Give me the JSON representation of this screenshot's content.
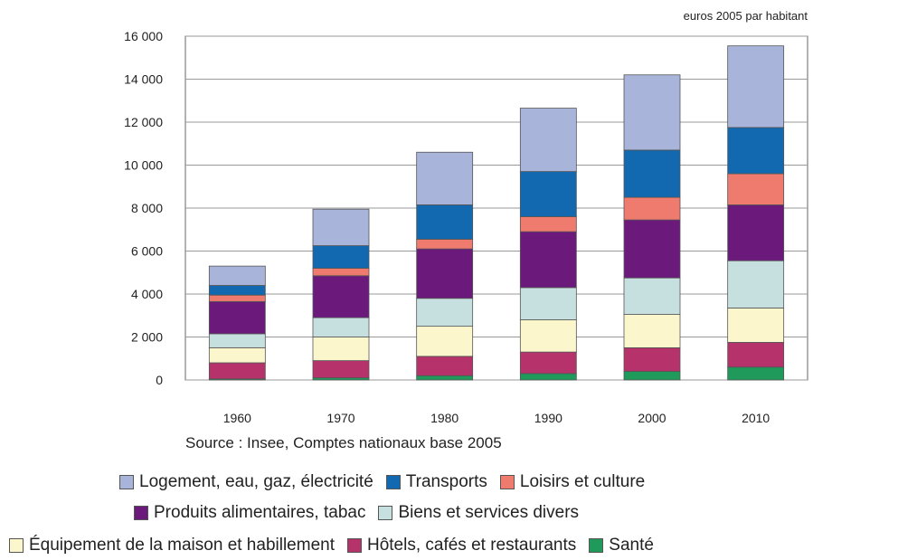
{
  "chart_data": {
    "type": "bar",
    "stacked": true,
    "unit_label": "euros 2005 par habitant",
    "categories": [
      "1960",
      "1970",
      "1980",
      "1990",
      "2000",
      "2010"
    ],
    "y_ticks": [
      "0",
      "2 000",
      "4 000",
      "6 000",
      "8 000",
      "10 000",
      "12 000",
      "14 000",
      "16 000"
    ],
    "ylim": [
      0,
      16000
    ],
    "grid": true,
    "legend_placement": "bottom",
    "series": [
      {
        "name": "Santé",
        "color": "#1f9a5a",
        "values": [
          50,
          100,
          200,
          300,
          400,
          600
        ]
      },
      {
        "name": "Hôtels, cafés et restaurants",
        "color": "#b5336a",
        "values": [
          750,
          800,
          900,
          1000,
          1100,
          1150
        ]
      },
      {
        "name": "Équipement de la maison et habillement",
        "color": "#fbf6cc",
        "values": [
          700,
          1100,
          1400,
          1500,
          1550,
          1600
        ]
      },
      {
        "name": "Biens et services divers",
        "color": "#c6e0e0",
        "values": [
          650,
          900,
          1300,
          1500,
          1700,
          2200
        ]
      },
      {
        "name": "Produits alimentaires, tabac",
        "color": "#6b1a7c",
        "values": [
          1500,
          1950,
          2300,
          2600,
          2700,
          2600
        ]
      },
      {
        "name": "Loisirs et culture",
        "color": "#ef7a6e",
        "values": [
          300,
          350,
          450,
          700,
          1050,
          1450
        ]
      },
      {
        "name": "Transports",
        "color": "#1269b0",
        "values": [
          450,
          1050,
          1600,
          2100,
          2200,
          2150
        ]
      },
      {
        "name": "Logement, eau, gaz, électricité",
        "color": "#a9b4db",
        "values": [
          900,
          1700,
          2450,
          2950,
          3500,
          3800
        ]
      }
    ]
  },
  "source": "Source : Insee, Comptes nationaux base 2005",
  "legend_rows": [
    [
      "Logement, eau, gaz, électricité",
      "Transports",
      "Loisirs et culture"
    ],
    [
      "Produits alimentaires, tabac",
      "Biens et services divers"
    ],
    [
      "Équipement de la maison et habillement",
      "Hôtels, cafés et restaurants",
      "Santé"
    ]
  ]
}
